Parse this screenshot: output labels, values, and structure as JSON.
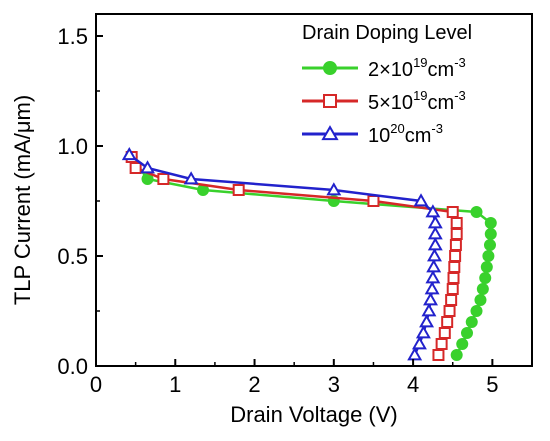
{
  "chart_data": {
    "type": "line",
    "title": "",
    "xlabel": "Drain Voltage (V)",
    "ylabel": "TLP Current (mA/μm)",
    "xlim": [
      0,
      5.5
    ],
    "ylim": [
      0,
      1.6
    ],
    "xticks": [
      "0",
      "1",
      "2",
      "3",
      "4",
      "5"
    ],
    "yticks": [
      "0.0",
      "0.5",
      "1.0",
      "1.5"
    ],
    "grid": false,
    "legend": {
      "title": "Drain Doping Level",
      "position": "top-right"
    },
    "series": [
      {
        "name": "2×10^19cm^-3",
        "label_parts": {
          "base": "2×10",
          "exp1": "19",
          "mid": "cm",
          "exp2": "-3"
        },
        "color": "#39d12c",
        "marker": "filled-circle",
        "points": [
          [
            0.45,
            0.95
          ],
          [
            0.65,
            0.85
          ],
          [
            1.35,
            0.8
          ],
          [
            3.0,
            0.75
          ],
          [
            4.8,
            0.7
          ],
          [
            4.98,
            0.65
          ],
          [
            4.98,
            0.6
          ],
          [
            4.97,
            0.55
          ],
          [
            4.95,
            0.5
          ],
          [
            4.93,
            0.45
          ],
          [
            4.91,
            0.4
          ],
          [
            4.88,
            0.35
          ],
          [
            4.85,
            0.3
          ],
          [
            4.8,
            0.25
          ],
          [
            4.74,
            0.2
          ],
          [
            4.68,
            0.15
          ],
          [
            4.62,
            0.1
          ],
          [
            4.55,
            0.05
          ]
        ]
      },
      {
        "name": "5×10^19cm^-3",
        "label_parts": {
          "base": "5×10",
          "exp1": "19",
          "mid": "cm",
          "exp2": "-3"
        },
        "color": "#d62828",
        "marker": "open-square",
        "points": [
          [
            0.45,
            0.95
          ],
          [
            0.5,
            0.9
          ],
          [
            0.85,
            0.85
          ],
          [
            1.8,
            0.8
          ],
          [
            3.5,
            0.75
          ],
          [
            4.5,
            0.7
          ],
          [
            4.55,
            0.65
          ],
          [
            4.55,
            0.6
          ],
          [
            4.54,
            0.55
          ],
          [
            4.53,
            0.5
          ],
          [
            4.52,
            0.45
          ],
          [
            4.51,
            0.4
          ],
          [
            4.5,
            0.35
          ],
          [
            4.48,
            0.3
          ],
          [
            4.46,
            0.25
          ],
          [
            4.43,
            0.2
          ],
          [
            4.4,
            0.15
          ],
          [
            4.36,
            0.1
          ],
          [
            4.32,
            0.05
          ]
        ]
      },
      {
        "name": "10^20cm^-3",
        "label_parts": {
          "base": "10",
          "exp1": "20",
          "mid": "cm",
          "exp2": "-3"
        },
        "color": "#2222cc",
        "marker": "open-triangle",
        "points": [
          [
            0.42,
            0.96
          ],
          [
            0.65,
            0.9
          ],
          [
            1.2,
            0.85
          ],
          [
            3.0,
            0.8
          ],
          [
            4.1,
            0.75
          ],
          [
            4.25,
            0.7
          ],
          [
            4.28,
            0.65
          ],
          [
            4.28,
            0.6
          ],
          [
            4.28,
            0.55
          ],
          [
            4.27,
            0.5
          ],
          [
            4.26,
            0.45
          ],
          [
            4.25,
            0.4
          ],
          [
            4.24,
            0.35
          ],
          [
            4.22,
            0.3
          ],
          [
            4.2,
            0.25
          ],
          [
            4.17,
            0.2
          ],
          [
            4.13,
            0.15
          ],
          [
            4.08,
            0.1
          ],
          [
            4.02,
            0.05
          ]
        ]
      }
    ]
  }
}
